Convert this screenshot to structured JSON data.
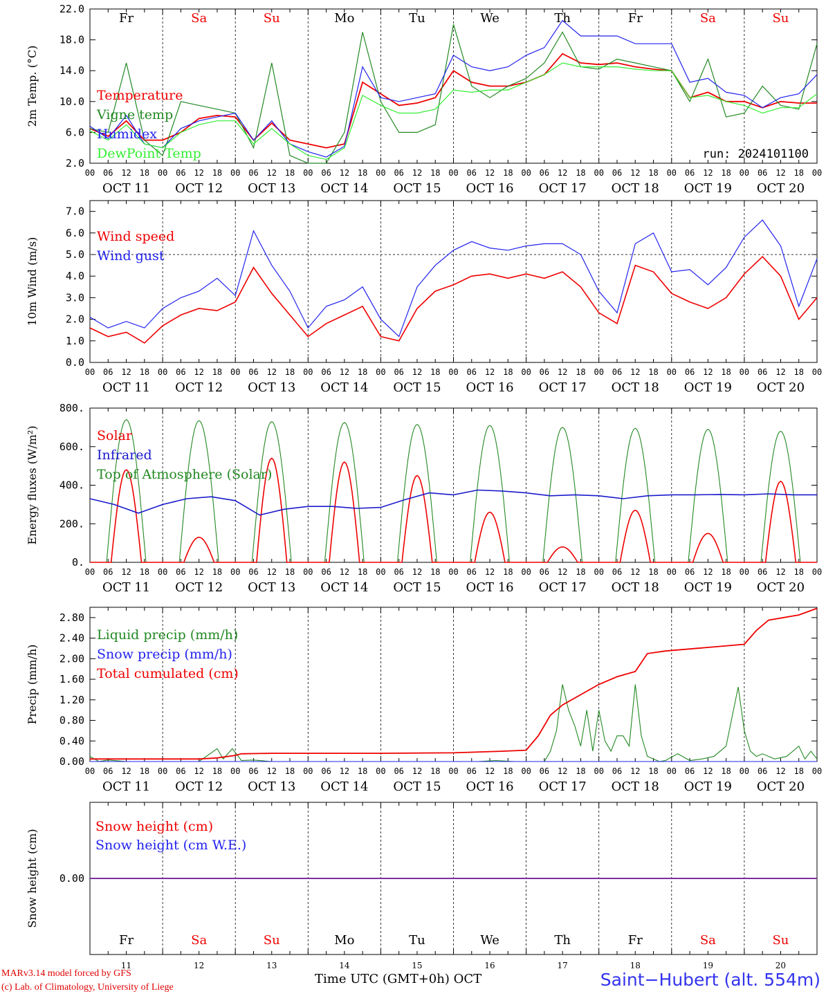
{
  "chart_data": [
    {
      "type": "line",
      "ylabel": "2m Temp. (°C)",
      "ylim": [
        2,
        22
      ],
      "yticks": [
        "2.0",
        "6.0",
        "10.0",
        "14.0",
        "18.0",
        "22.0"
      ],
      "day_labels": [
        "OCT 11",
        "OCT 12",
        "OCT 13",
        "OCT 14",
        "OCT 15",
        "OCT 16",
        "OCT 17",
        "OCT 18",
        "OCT 19",
        "OCT 20"
      ],
      "weekdays": [
        "Fr",
        "Sa",
        "Su",
        "Mo",
        "Tu",
        "We",
        "Th",
        "Fr",
        "Sa",
        "Su"
      ],
      "weekday_colors": [
        "#000000",
        "#ee0000",
        "#ee0000",
        "#000000",
        "#000000",
        "#000000",
        "#000000",
        "#000000",
        "#ee0000",
        "#ee0000"
      ],
      "run_label": "run: 2024101100",
      "hour_ticks": [
        "00",
        "06",
        "12",
        "18"
      ],
      "x_hours": [
        0,
        6,
        12,
        18,
        24,
        30,
        36,
        42,
        48,
        54,
        60,
        66,
        72,
        78,
        84,
        90,
        96,
        102,
        108,
        114,
        120,
        126,
        132,
        138,
        144,
        150,
        156,
        162,
        168,
        174,
        180,
        186,
        192,
        198,
        204,
        210,
        216,
        222,
        228,
        234,
        240
      ],
      "series": [
        {
          "name": "Temperature",
          "color": "#ee0000",
          "values": [
            6.5,
            5.5,
            7.5,
            5.0,
            5.0,
            6.0,
            7.8,
            8.2,
            8.0,
            5.0,
            7.2,
            5.0,
            4.5,
            4.0,
            4.5,
            12.5,
            11.0,
            9.5,
            9.8,
            10.5,
            14.0,
            12.5,
            12.0,
            12.0,
            12.5,
            13.5,
            16.2,
            15.0,
            14.8,
            15.0,
            14.5,
            14.2,
            14.0,
            10.5,
            11.2,
            10.0,
            10.0,
            9.2,
            10.0,
            9.8,
            9.8
          ]
        },
        {
          "name": "Vigne temp",
          "color": "#228822",
          "values": [
            6.5,
            6.0,
            15.0,
            5.0,
            3.0,
            10.0,
            9.5,
            9.0,
            8.5,
            4.0,
            15.0,
            3.0,
            2.0,
            1.5,
            6.0,
            19.0,
            10.0,
            6.0,
            6.0,
            7.0,
            20.0,
            12.0,
            10.5,
            12.0,
            13.0,
            15.0,
            19.0,
            14.5,
            14.2,
            15.5,
            15.0,
            14.5,
            14.0,
            10.0,
            15.5,
            8.0,
            8.5,
            12.0,
            9.5,
            9.0,
            17.5
          ]
        },
        {
          "name": "Humidex",
          "color": "#2222ee",
          "values": [
            6.8,
            5.2,
            8.2,
            4.5,
            4.0,
            6.5,
            7.5,
            8.0,
            8.5,
            5.0,
            7.5,
            4.5,
            3.5,
            2.8,
            4.2,
            14.5,
            10.5,
            10.0,
            10.5,
            11.0,
            16.0,
            14.5,
            14.0,
            14.5,
            16.0,
            17.0,
            20.5,
            18.5,
            18.5,
            18.5,
            17.5,
            17.5,
            17.5,
            12.5,
            13.0,
            11.2,
            10.8,
            9.2,
            10.5,
            11.0,
            13.5
          ]
        },
        {
          "name": "DewPoint Temp",
          "color": "#33ee33",
          "values": [
            6.2,
            5.0,
            7.0,
            4.5,
            4.0,
            6.0,
            7.0,
            7.5,
            7.5,
            4.5,
            6.5,
            4.5,
            3.0,
            2.5,
            4.0,
            10.8,
            9.5,
            8.5,
            8.5,
            9.0,
            11.5,
            11.2,
            11.5,
            11.5,
            12.5,
            13.5,
            15.0,
            14.5,
            14.5,
            14.5,
            14.2,
            14.0,
            14.0,
            10.5,
            10.8,
            10.0,
            9.5,
            8.5,
            9.2,
            9.2,
            11.0
          ]
        }
      ]
    },
    {
      "type": "line",
      "ylabel": "10m Wind (m/s)",
      "ylim": [
        0,
        7.5
      ],
      "yticks": [
        "0.0",
        "1.0",
        "2.0",
        "3.0",
        "4.0",
        "5.0",
        "6.0",
        "7.0"
      ],
      "day_labels": [
        "OCT 11",
        "OCT 12",
        "OCT 13",
        "OCT 14",
        "OCT 15",
        "OCT 16",
        "OCT 17",
        "OCT 18",
        "OCT 19",
        "OCT 20"
      ],
      "reference_line": 5.0,
      "hour_ticks": [
        "00",
        "06",
        "12",
        "18"
      ],
      "x_hours": [
        0,
        6,
        12,
        18,
        24,
        30,
        36,
        42,
        48,
        54,
        60,
        66,
        72,
        78,
        84,
        90,
        96,
        102,
        108,
        114,
        120,
        126,
        132,
        138,
        144,
        150,
        156,
        162,
        168,
        174,
        180,
        186,
        192,
        198,
        204,
        210,
        216,
        222,
        228,
        234,
        240
      ],
      "series": [
        {
          "name": "Wind speed",
          "color": "#ee0000",
          "values": [
            1.6,
            1.2,
            1.4,
            0.9,
            1.7,
            2.2,
            2.5,
            2.4,
            2.8,
            4.4,
            3.2,
            2.2,
            1.2,
            1.8,
            2.2,
            2.6,
            1.2,
            1.0,
            2.5,
            3.3,
            3.6,
            4.0,
            4.1,
            3.9,
            4.1,
            3.9,
            4.2,
            3.5,
            2.3,
            1.8,
            4.5,
            4.2,
            3.2,
            2.8,
            2.5,
            3.0,
            4.1,
            4.9,
            4.0,
            2.0,
            3.0
          ]
        },
        {
          "name": "Wind gust",
          "color": "#2222ee",
          "values": [
            2.1,
            1.6,
            1.9,
            1.6,
            2.5,
            3.0,
            3.3,
            3.9,
            3.1,
            6.1,
            4.5,
            3.3,
            1.6,
            2.6,
            2.9,
            3.5,
            2.0,
            1.2,
            3.5,
            4.5,
            5.2,
            5.6,
            5.3,
            5.2,
            5.4,
            5.5,
            5.5,
            5.0,
            3.3,
            2.3,
            5.5,
            6.0,
            4.2,
            4.3,
            3.6,
            4.4,
            5.8,
            6.6,
            5.4,
            2.6,
            4.8
          ]
        }
      ]
    },
    {
      "type": "line",
      "ylabel": "Energy fluxes (W/m²)",
      "ylim": [
        0,
        800
      ],
      "yticks": [
        "0.",
        "200.",
        "400.",
        "600.",
        "800."
      ],
      "day_labels": [
        "OCT 11",
        "OCT 12",
        "OCT 13",
        "OCT 14",
        "OCT 15",
        "OCT 16",
        "OCT 17",
        "OCT 18",
        "OCT 19",
        "OCT 20"
      ],
      "hour_ticks": [
        "00",
        "06",
        "12",
        "18"
      ],
      "daily_peaks": {
        "solar": [
          480,
          130,
          540,
          520,
          450,
          260,
          80,
          270,
          150,
          420
        ],
        "toa_solar": [
          740,
          735,
          730,
          725,
          715,
          710,
          700,
          695,
          690,
          680
        ]
      },
      "series": [
        {
          "name": "Solar",
          "color": "#ee0000"
        },
        {
          "name": "Infrared",
          "color": "#1a1acc",
          "values": [
            330,
            300,
            255,
            300,
            330,
            340,
            320,
            245,
            275,
            290,
            290,
            280,
            285,
            325,
            360,
            350,
            375,
            370,
            360,
            345,
            350,
            345,
            330,
            345,
            350,
            350,
            352,
            350,
            355,
            350,
            350
          ]
        },
        {
          "name": "Top of Atmosphere (Solar)",
          "color": "#228822"
        }
      ]
    },
    {
      "type": "line",
      "ylabel": "Precip (mm/h)",
      "ylim": [
        0,
        3.0
      ],
      "yticks": [
        "0.00",
        "0.40",
        "0.80",
        "1.20",
        "1.60",
        "2.00",
        "2.40",
        "2.80"
      ],
      "day_labels": [
        "OCT 11",
        "OCT 12",
        "OCT 13",
        "OCT 14",
        "OCT 15",
        "OCT 16",
        "OCT 17",
        "OCT 18",
        "OCT 19",
        "OCT 20"
      ],
      "hour_ticks": [
        "00",
        "06",
        "12",
        "18"
      ],
      "series": [
        {
          "name": "Liquid precip (mm/h)",
          "color": "#228822",
          "x": [
            0,
            3,
            6,
            12,
            36,
            42,
            44,
            47,
            50,
            54,
            60,
            70,
            82,
            100,
            110,
            120,
            128,
            134,
            140,
            146,
            150,
            152,
            154,
            156,
            158,
            160,
            162,
            164,
            166,
            168,
            170,
            172,
            174,
            176,
            178,
            180,
            182,
            184,
            186,
            188,
            190,
            194,
            198,
            202,
            206,
            210,
            214,
            216,
            218,
            220,
            222,
            226,
            230,
            234,
            236,
            238,
            240
          ],
          "values": [
            0.1,
            0.0,
            0.03,
            0.0,
            0.0,
            0.25,
            0.05,
            0.25,
            0.02,
            0.03,
            0.0,
            0.0,
            0.0,
            0.0,
            0.0,
            0.0,
            0.0,
            0.02,
            0.0,
            0.0,
            0.0,
            0.2,
            0.6,
            1.5,
            1.0,
            0.7,
            0.3,
            1.0,
            0.2,
            1.0,
            0.4,
            0.2,
            0.5,
            0.5,
            0.3,
            1.5,
            0.5,
            0.1,
            0.05,
            0.0,
            0.02,
            0.15,
            0.02,
            0.05,
            0.1,
            0.3,
            1.45,
            0.6,
            0.2,
            0.1,
            0.15,
            0.05,
            0.1,
            0.3,
            0.05,
            0.2,
            0.05
          ]
        },
        {
          "name": "Snow precip (mm/h)",
          "color": "#2222ee",
          "x": [
            0,
            240
          ],
          "values": [
            0.0,
            0.0
          ]
        },
        {
          "name": "Total cumulated (cm)",
          "color": "#ee0000",
          "x": [
            0,
            36,
            42,
            48,
            50,
            60,
            96,
            120,
            136,
            144,
            148,
            152,
            156,
            162,
            168,
            174,
            180,
            184,
            190,
            204,
            216,
            220,
            224,
            234,
            240
          ],
          "values": [
            0.05,
            0.05,
            0.07,
            0.12,
            0.15,
            0.16,
            0.16,
            0.17,
            0.2,
            0.22,
            0.5,
            0.9,
            1.1,
            1.3,
            1.5,
            1.65,
            1.75,
            2.1,
            2.15,
            2.22,
            2.28,
            2.55,
            2.75,
            2.85,
            2.98
          ]
        }
      ]
    },
    {
      "type": "line",
      "ylabel": "Snow height (cm)",
      "yticks": [
        "0.00"
      ],
      "weekdays": [
        "Fr",
        "Sa",
        "Su",
        "Mo",
        "Tu",
        "We",
        "Th",
        "Fr",
        "Sa",
        "Su"
      ],
      "weekday_colors": [
        "#000000",
        "#ee0000",
        "#ee0000",
        "#000000",
        "#000000",
        "#000000",
        "#000000",
        "#000000",
        "#ee0000",
        "#ee0000"
      ],
      "day_numbers": [
        "11",
        "12",
        "13",
        "14",
        "15",
        "16",
        "17",
        "18",
        "19",
        "20"
      ],
      "series": [
        {
          "name": "Snow height (cm)",
          "color": "#ee0000",
          "values": [
            0.0,
            0.0
          ]
        },
        {
          "name": "Snow height (cm W.E.)",
          "color": "#2222ee",
          "values": [
            0.0,
            0.0
          ]
        }
      ]
    }
  ],
  "footer": {
    "model_line": "MARv3.14 model forced by GFS",
    "copyright_line": "(c) Lab. of Climatology, University of Liege",
    "x_axis_title": "Time UTC (GMT+0h) OCT",
    "station": "Saint−Hubert (alt. 554m)"
  }
}
